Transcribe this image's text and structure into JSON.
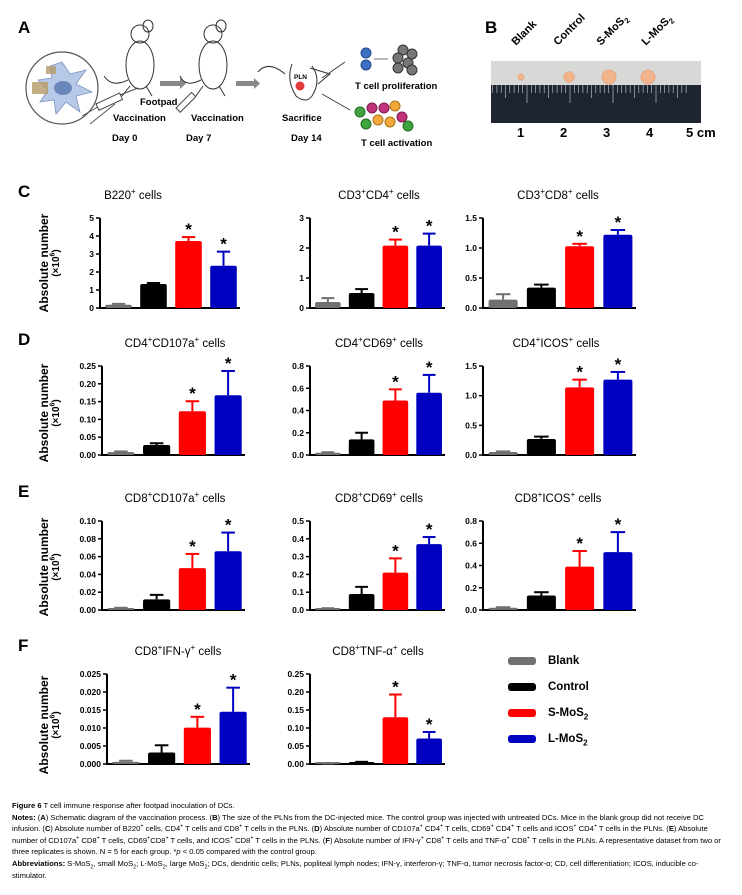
{
  "panel_letters": [
    "A",
    "B",
    "C",
    "D",
    "E",
    "F"
  ],
  "schematic": {
    "labels": {
      "footpad": "Footpad",
      "vaccination1": "Vaccination",
      "vaccination2": "Vaccination",
      "sacrifice": "Sacrifice",
      "day0": "Day 0",
      "day7": "Day 7",
      "day14": "Day 14",
      "pln": "PLN",
      "proliferation": "T cell proliferation",
      "activation": "T cell activation"
    }
  },
  "photo": {
    "group_labels": [
      "Blank",
      "Control",
      "S-MoS",
      "L-MoS"
    ],
    "group_subscripts": [
      "",
      "",
      "2",
      "2"
    ],
    "ruler_numbers": [
      "1",
      "2",
      "3",
      "4",
      "5 cm"
    ],
    "node_relative_sizes": [
      0.35,
      0.6,
      0.8,
      0.8
    ],
    "colors": {
      "node": "#f2b48a",
      "ruler": "#1e2530",
      "background": "#d8d8d6"
    }
  },
  "legend": {
    "items": [
      {
        "label": "Blank",
        "sub": "",
        "color": "#707070"
      },
      {
        "label": "Control",
        "sub": "",
        "color": "#000000"
      },
      {
        "label": "S-MoS",
        "sub": "2",
        "color": "#ff0000"
      },
      {
        "label": "L-MoS",
        "sub": "2",
        "color": "#0000c0"
      }
    ]
  },
  "y_axis_label": {
    "line1": "Absolute number",
    "line2": "(×10",
    "sup": "6",
    "close": ")"
  },
  "chart_data": [
    {
      "id": "B220",
      "type": "bar",
      "title": "B220",
      "title_sup": [
        "+"
      ],
      "title_parts": [
        "B220",
        " cells"
      ],
      "categories": [
        "Blank",
        "Control",
        "S-MoS2",
        "L-MoS2"
      ],
      "values": [
        0.18,
        1.33,
        3.72,
        2.35
      ],
      "errors": [
        0.05,
        0.06,
        0.22,
        0.78
      ],
      "significant": [
        false,
        false,
        true,
        true
      ],
      "ylim": [
        0,
        5
      ],
      "yticks": [
        "0",
        "1",
        "2",
        "3",
        "4",
        "5"
      ],
      "ytick_values": [
        0,
        1,
        2,
        3,
        4,
        5
      ],
      "ylabel": "Absolute number (×10^6)"
    },
    {
      "id": "CD3CD4",
      "type": "bar",
      "title_parts": [
        "CD3",
        "CD4",
        " cells"
      ],
      "categories": [
        "Blank",
        "Control",
        "S-MoS2",
        "L-MoS2"
      ],
      "values": [
        0.2,
        0.5,
        2.08,
        2.08
      ],
      "errors": [
        0.13,
        0.13,
        0.2,
        0.4
      ],
      "significant": [
        false,
        false,
        true,
        true
      ],
      "ylim": [
        0,
        3
      ],
      "yticks": [
        "0",
        "1",
        "2",
        "3"
      ],
      "ytick_values": [
        0,
        1,
        2,
        3
      ]
    },
    {
      "id": "CD3CD8",
      "type": "bar",
      "title_parts": [
        "CD3",
        "CD8",
        " cells"
      ],
      "categories": [
        "Blank",
        "Control",
        "S-MoS2",
        "L-MoS2"
      ],
      "values": [
        0.14,
        0.34,
        1.03,
        1.22
      ],
      "errors": [
        0.09,
        0.05,
        0.04,
        0.08
      ],
      "significant": [
        false,
        false,
        true,
        true
      ],
      "ylim": [
        0,
        1.5
      ],
      "yticks": [
        "0.0",
        "0.5",
        "1.0",
        "1.5"
      ],
      "ytick_values": [
        0,
        0.5,
        1,
        1.5
      ]
    },
    {
      "id": "CD4CD107a",
      "type": "bar",
      "title_parts": [
        "CD4",
        "CD107a",
        " cells"
      ],
      "categories": [
        "Blank",
        "Control",
        "S-MoS2",
        "L-MoS2"
      ],
      "values": [
        0.008,
        0.028,
        0.123,
        0.168
      ],
      "errors": [
        0.002,
        0.005,
        0.028,
        0.068
      ],
      "significant": [
        false,
        false,
        true,
        true
      ],
      "ylim": [
        0,
        0.25
      ],
      "yticks": [
        "0.00",
        "0.05",
        "0.10",
        "0.15",
        "0.20",
        "0.25"
      ],
      "ytick_values": [
        0,
        0.05,
        0.1,
        0.15,
        0.2,
        0.25
      ]
    },
    {
      "id": "CD4CD69",
      "type": "bar",
      "title_parts": [
        "CD4",
        "CD69",
        " cells"
      ],
      "categories": [
        "Blank",
        "Control",
        "S-MoS2",
        "L-MoS2"
      ],
      "values": [
        0.02,
        0.14,
        0.49,
        0.56
      ],
      "errors": [
        0.005,
        0.06,
        0.1,
        0.16
      ],
      "significant": [
        false,
        false,
        true,
        true
      ],
      "ylim": [
        0,
        0.8
      ],
      "yticks": [
        "0.0",
        "0.2",
        "0.4",
        "0.6",
        "0.8"
      ],
      "ytick_values": [
        0,
        0.2,
        0.4,
        0.6,
        0.8
      ]
    },
    {
      "id": "CD4ICOS",
      "type": "bar",
      "title_parts": [
        "CD4",
        "ICOS",
        " cells"
      ],
      "categories": [
        "Blank",
        "Control",
        "S-MoS2",
        "L-MoS2"
      ],
      "values": [
        0.05,
        0.27,
        1.14,
        1.27
      ],
      "errors": [
        0.01,
        0.04,
        0.13,
        0.13
      ],
      "significant": [
        false,
        false,
        true,
        true
      ],
      "ylim": [
        0,
        1.5
      ],
      "yticks": [
        "0.0",
        "0.5",
        "1.0",
        "1.5"
      ],
      "ytick_values": [
        0,
        0.5,
        1,
        1.5
      ]
    },
    {
      "id": "CD8CD107a",
      "type": "bar",
      "title_parts": [
        "CD8",
        "CD107a",
        " cells"
      ],
      "categories": [
        "Blank",
        "Control",
        "S-MoS2",
        "L-MoS2"
      ],
      "values": [
        0.002,
        0.012,
        0.047,
        0.066
      ],
      "errors": [
        0.0005,
        0.005,
        0.016,
        0.021
      ],
      "significant": [
        false,
        false,
        true,
        true
      ],
      "ylim": [
        0,
        0.1
      ],
      "yticks": [
        "0.00",
        "0.02",
        "0.04",
        "0.06",
        "0.08",
        "0.10"
      ],
      "ytick_values": [
        0,
        0.02,
        0.04,
        0.06,
        0.08,
        0.1
      ]
    },
    {
      "id": "CD8CD69",
      "type": "bar",
      "title_parts": [
        "CD8",
        "CD69",
        " cells"
      ],
      "categories": [
        "Blank",
        "Control",
        "S-MoS2",
        "L-MoS2"
      ],
      "values": [
        0.008,
        0.09,
        0.21,
        0.37
      ],
      "errors": [
        0.002,
        0.04,
        0.08,
        0.04
      ],
      "significant": [
        false,
        false,
        true,
        true
      ],
      "ylim": [
        0,
        0.5
      ],
      "yticks": [
        "0.0",
        "0.1",
        "0.2",
        "0.3",
        "0.4",
        "0.5"
      ],
      "ytick_values": [
        0,
        0.1,
        0.2,
        0.3,
        0.4,
        0.5
      ]
    },
    {
      "id": "CD8ICOS",
      "type": "bar",
      "title_parts": [
        "CD8",
        "ICOS",
        " cells"
      ],
      "categories": [
        "Blank",
        "Control",
        "S-MoS2",
        "L-MoS2"
      ],
      "values": [
        0.02,
        0.13,
        0.39,
        0.52
      ],
      "errors": [
        0.005,
        0.03,
        0.14,
        0.18
      ],
      "significant": [
        false,
        false,
        true,
        true
      ],
      "ylim": [
        0,
        0.8
      ],
      "yticks": [
        "0.0",
        "0.2",
        "0.4",
        "0.6",
        "0.8"
      ],
      "ytick_values": [
        0,
        0.2,
        0.4,
        0.6,
        0.8
      ]
    },
    {
      "id": "CD8IFNg",
      "type": "bar",
      "title_parts": [
        "CD8",
        "IFN-γ",
        " cells"
      ],
      "categories": [
        "Blank",
        "Control",
        "S-MoS2",
        "L-MoS2"
      ],
      "values": [
        0.0006,
        0.0032,
        0.0101,
        0.0145
      ],
      "errors": [
        0.0003,
        0.002,
        0.003,
        0.0067
      ],
      "significant": [
        false,
        false,
        true,
        true
      ],
      "ylim": [
        0,
        0.025
      ],
      "yticks": [
        "0.000",
        "0.005",
        "0.010",
        "0.015",
        "0.020",
        "0.025"
      ],
      "ytick_values": [
        0,
        0.005,
        0.01,
        0.015,
        0.02,
        0.025
      ]
    },
    {
      "id": "CD8TNFa",
      "type": "bar",
      "title_parts": [
        "CD8",
        "TNF-α",
        " cells"
      ],
      "categories": [
        "Blank",
        "Control",
        "S-MoS2",
        "L-MoS2"
      ],
      "values": [
        0.001,
        0.004,
        0.13,
        0.071
      ],
      "errors": [
        0.0005,
        0.002,
        0.063,
        0.018
      ],
      "significant": [
        false,
        false,
        true,
        true
      ],
      "ylim": [
        0,
        0.25
      ],
      "yticks": [
        "0.00",
        "0.05",
        "0.10",
        "0.15",
        "0.20",
        "0.25"
      ],
      "ytick_values": [
        0,
        0.05,
        0.1,
        0.15,
        0.2,
        0.25
      ]
    }
  ],
  "significance_marker": "*",
  "bar_colors": [
    "#707070",
    "#000000",
    "#ff0000",
    "#0000c0"
  ],
  "caption": {
    "fig_label": "Figure 6",
    "fig_title": " T cell immune response after footpad inoculation of DCs.",
    "notes_label": "Notes:",
    "notes_html": " (<b>A</b>) Schematic diagram of the vaccination process. (<b>B</b>) The size of the PLNs from the DC-injected mice. The control group was injected with untreated DCs. Mice in the blank group did not receive DC infusion. (<b>C</b>) Absolute number of B220<sup>+</sup> cells, CD4<sup>+</sup> T cells and CD8<sup>+</sup> T cells in the PLNs. (<b>D</b>) Absolute number of CD107a<sup>+</sup> CD4<sup>+</sup> T cells, CD69<sup>+</sup> CD4<sup>+</sup> T cells and ICOS<sup>+</sup> CD4<sup>+</sup> T cells in the PLNs. (<b>E</b>) Absolute number of CD107a<sup>+</sup> CD8<sup>+</sup> T cells, CD69<sup>+</sup>CD8<sup>+</sup> T cells, and ICOS<sup>+</sup> CD8<sup>+</sup> T cells in the PLNs. (<b>F</b>) Absolute number of IFN-γ<sup>+</sup> CD8<sup>+</sup> T cells and TNF-α<sup>+</sup> CD8<sup>+</sup> T cells in the PLNs. A representative dataset from two or three replicates is shown. N = 5 for each group. *<i>p</i> &lt; 0.05 compared with the control group.",
    "abbrev_label": "Abbreviations:",
    "abbrev_html": " S-MoS<sub>2</sub>, small MoS<sub>2</sub>; L-MoS<sub>2</sub>, large MoS<sub>2</sub>; DCs, dendritic cells; PLNs, popliteal lymph nodes; IFN-γ, interferon-γ; TNF-α, tumor necrosis factor-α; CD, cell differentiation; ICOS, inducible co-stimulator."
  }
}
